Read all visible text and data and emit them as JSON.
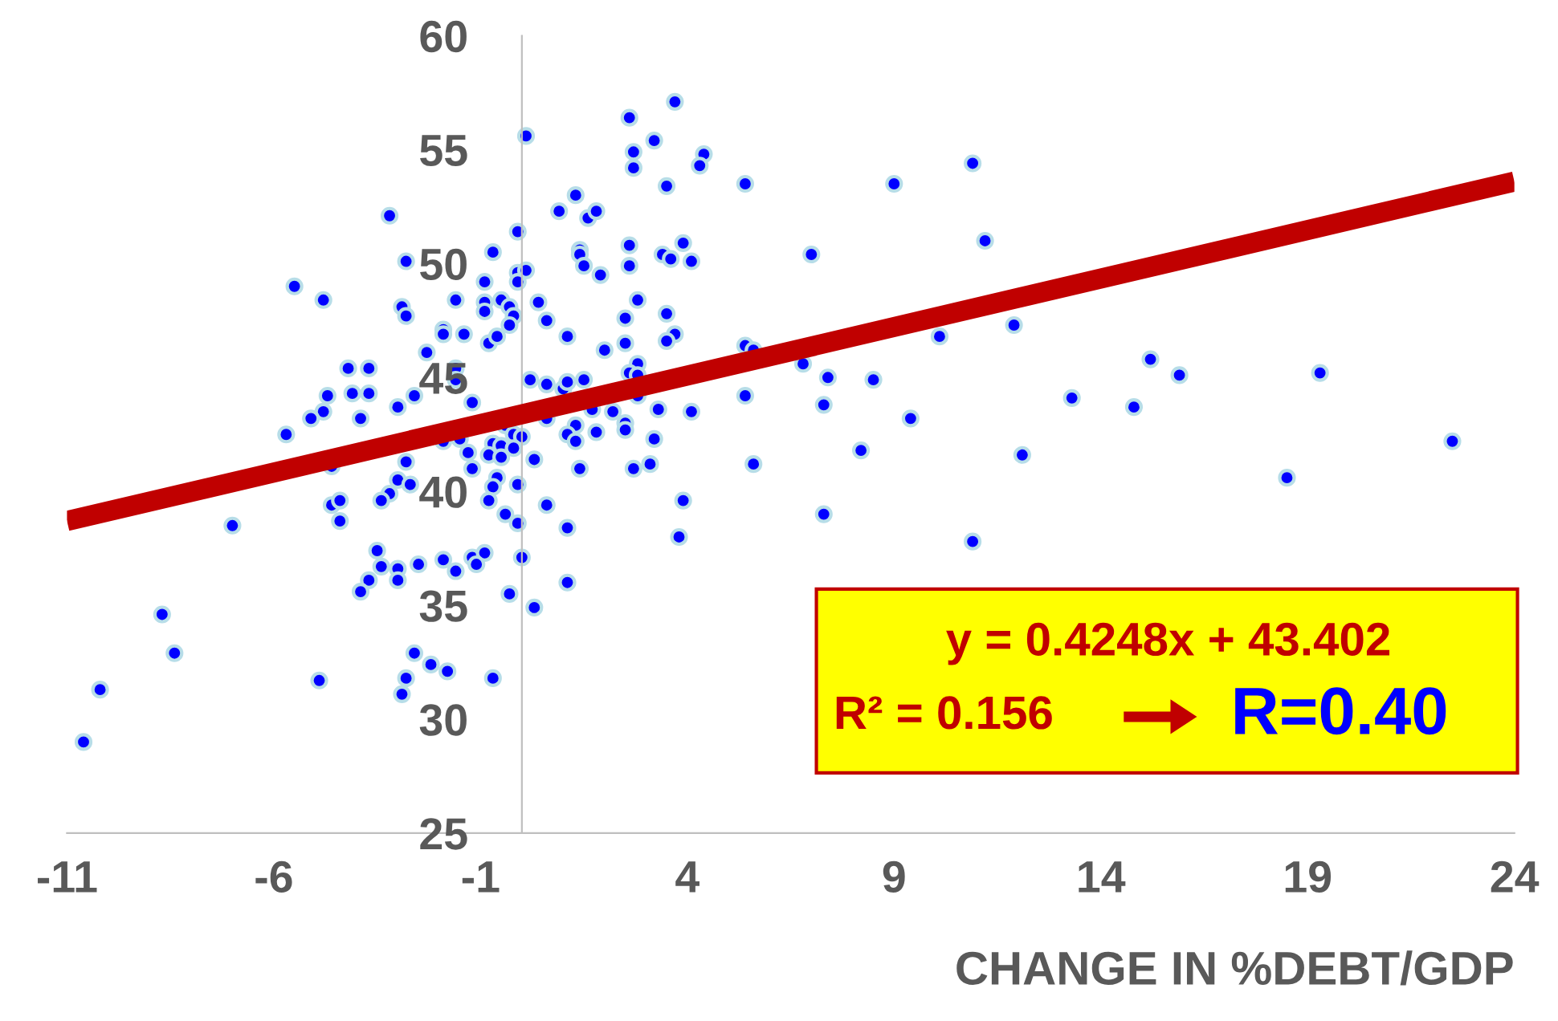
{
  "chart_data": {
    "type": "scatter",
    "xlabel": "CHANGE IN %DEBT/GDP",
    "xlim": [
      -11,
      24
    ],
    "xticks": [
      -11,
      -6,
      -1,
      4,
      9,
      14,
      19,
      24
    ],
    "ylim": [
      25,
      60
    ],
    "yticks": [
      25,
      30,
      35,
      40,
      45,
      50,
      55,
      60
    ],
    "grid": false,
    "legend": false,
    "marker": "circle",
    "annotations": [
      "y = 0.4248x + 43.402",
      "R² = 0.156",
      "R=0.40"
    ],
    "series": [
      {
        "color": "#0000ff",
        "x": [
          -2.8,
          -5.5,
          -4.8,
          -2.9,
          -2.8,
          -1.9,
          -2.3,
          -4.2,
          -3.7,
          -4.7,
          -4.1,
          -3.7,
          -2.6,
          -4.8,
          -5.1,
          -3.9,
          -3.0,
          -5.7,
          -4.6,
          -2.8,
          -3.0,
          -2.7,
          -3.2,
          -3.4,
          -4.6,
          -4.4,
          -4.4,
          -7.0,
          -3.5,
          -3.4,
          -3.0,
          -2.5,
          -1.9,
          -3.7,
          -3.9,
          -3.0,
          -8.7,
          -8.4,
          -10.2,
          -10.6,
          -4.9,
          -2.6,
          -2.2,
          -1.8,
          -2.8,
          -2.9,
          -3.2,
          0.9,
          -0.1,
          -0.7,
          -0.1,
          0.1,
          -0.9,
          -0.1,
          -0.9,
          -0.5,
          -1.6,
          -0.3,
          0.4,
          -0.9,
          -0.2,
          -0.3,
          0.6,
          -1.9,
          -1.4,
          -0.8,
          -0.6,
          -1.6,
          -1.6,
          -1.2,
          0.2,
          0.6,
          0.6,
          -0.4,
          -0.7,
          -0.5,
          -0.2,
          0.0,
          -0.8,
          -0.5,
          -0.2,
          -1.3,
          -1.2,
          0.3,
          -1.5,
          -1.9,
          -0.6,
          -0.7,
          -0.1,
          -0.8,
          0.6,
          -0.4,
          -0.1,
          -1.6,
          -1.2,
          -0.9,
          -1.1,
          0.0,
          -0.3,
          0.3,
          -0.7,
          3.7,
          2.6,
          3.2,
          2.7,
          2.7,
          4.4,
          4.3,
          5.4,
          3.5,
          1.3,
          1.6,
          1.8,
          2.6,
          2.6,
          3.4,
          3.6,
          3.9,
          4.1,
          1.4,
          1.4,
          1.5,
          1.9,
          1.1,
          2.8,
          2.5,
          3.5,
          3.7,
          3.5,
          2.5,
          2.0,
          2.8,
          2.6,
          2.8,
          1.5,
          1.0,
          1.1,
          5.4,
          5.4,
          2.8,
          1.7,
          2.2,
          3.3,
          4.1,
          1.3,
          1.1,
          1.3,
          1.8,
          2.5,
          2.5,
          3.2,
          1.4,
          2.7,
          3.1,
          5.6,
          1.1,
          3.9,
          3.8,
          1.1,
          9.0,
          10.9,
          7.0,
          11.2,
          5.6,
          6.8,
          7.4,
          8.5,
          10.1,
          11.9,
          7.3,
          9.4,
          13.3,
          14.8,
          15.2,
          15.9,
          19.3,
          8.2,
          12.1,
          18.5,
          22.5,
          7.3,
          10.9,
          0.1
        ],
        "values": [
          50.1,
          49.0,
          48.4,
          48.1,
          47.7,
          47.1,
          46.1,
          45.4,
          45.4,
          44.2,
          44.3,
          44.3,
          44.2,
          43.5,
          43.2,
          43.2,
          43.7,
          42.5,
          41.1,
          41.3,
          40.5,
          40.3,
          39.9,
          39.6,
          39.4,
          39.6,
          38.7,
          38.5,
          37.4,
          36.7,
          36.6,
          36.8,
          37.0,
          36.1,
          35.6,
          36.1,
          34.6,
          32.9,
          31.3,
          29.0,
          31.7,
          32.9,
          32.4,
          32.1,
          31.8,
          31.1,
          52.1,
          52.3,
          51.4,
          50.5,
          49.6,
          49.7,
          49.2,
          49.2,
          48.3,
          48.4,
          48.4,
          48.1,
          48.3,
          47.9,
          47.7,
          47.3,
          47.5,
          46.9,
          46.9,
          46.5,
          46.8,
          45.4,
          44.9,
          43.9,
          44.9,
          44.7,
          43.2,
          42.9,
          42.1,
          42.0,
          42.5,
          42.4,
          41.6,
          41.5,
          41.9,
          41.7,
          41.0,
          41.4,
          42.3,
          42.2,
          40.6,
          40.2,
          40.3,
          39.6,
          39.4,
          39.0,
          38.6,
          36.5,
          37.1,
          37.3,
          36.8,
          37.1,
          35.5,
          34.9,
          31.8,
          57.1,
          56.4,
          55.4,
          54.9,
          54.2,
          54.8,
          54.3,
          53.5,
          53.4,
          53.0,
          52.0,
          52.3,
          50.8,
          49.9,
          50.4,
          50.2,
          50.9,
          50.1,
          50.6,
          50.4,
          49.9,
          49.5,
          46.8,
          48.4,
          47.6,
          47.8,
          46.9,
          46.6,
          46.5,
          46.2,
          45.6,
          45.2,
          45.1,
          44.9,
          44.5,
          44.8,
          46.4,
          44.2,
          44.2,
          43.6,
          43.5,
          43.6,
          43.5,
          42.9,
          42.5,
          42.2,
          42.6,
          43.0,
          42.7,
          42.3,
          41.0,
          41.0,
          41.2,
          41.2,
          38.4,
          39.6,
          38.0,
          36.0,
          53.5,
          54.4,
          50.4,
          51.0,
          46.2,
          45.6,
          45.0,
          44.9,
          46.8,
          47.3,
          43.8,
          43.2,
          44.1,
          43.7,
          45.8,
          45.1,
          45.2,
          41.8,
          41.6,
          40.6,
          42.2,
          39.0,
          37.8,
          55.6
        ]
      },
      {
        "type": "line",
        "color": "#c00000",
        "marker": "none",
        "line_style": "solid",
        "x": [
          -11,
          24
        ],
        "values": [
          38.7,
          53.6
        ]
      }
    ]
  }
}
